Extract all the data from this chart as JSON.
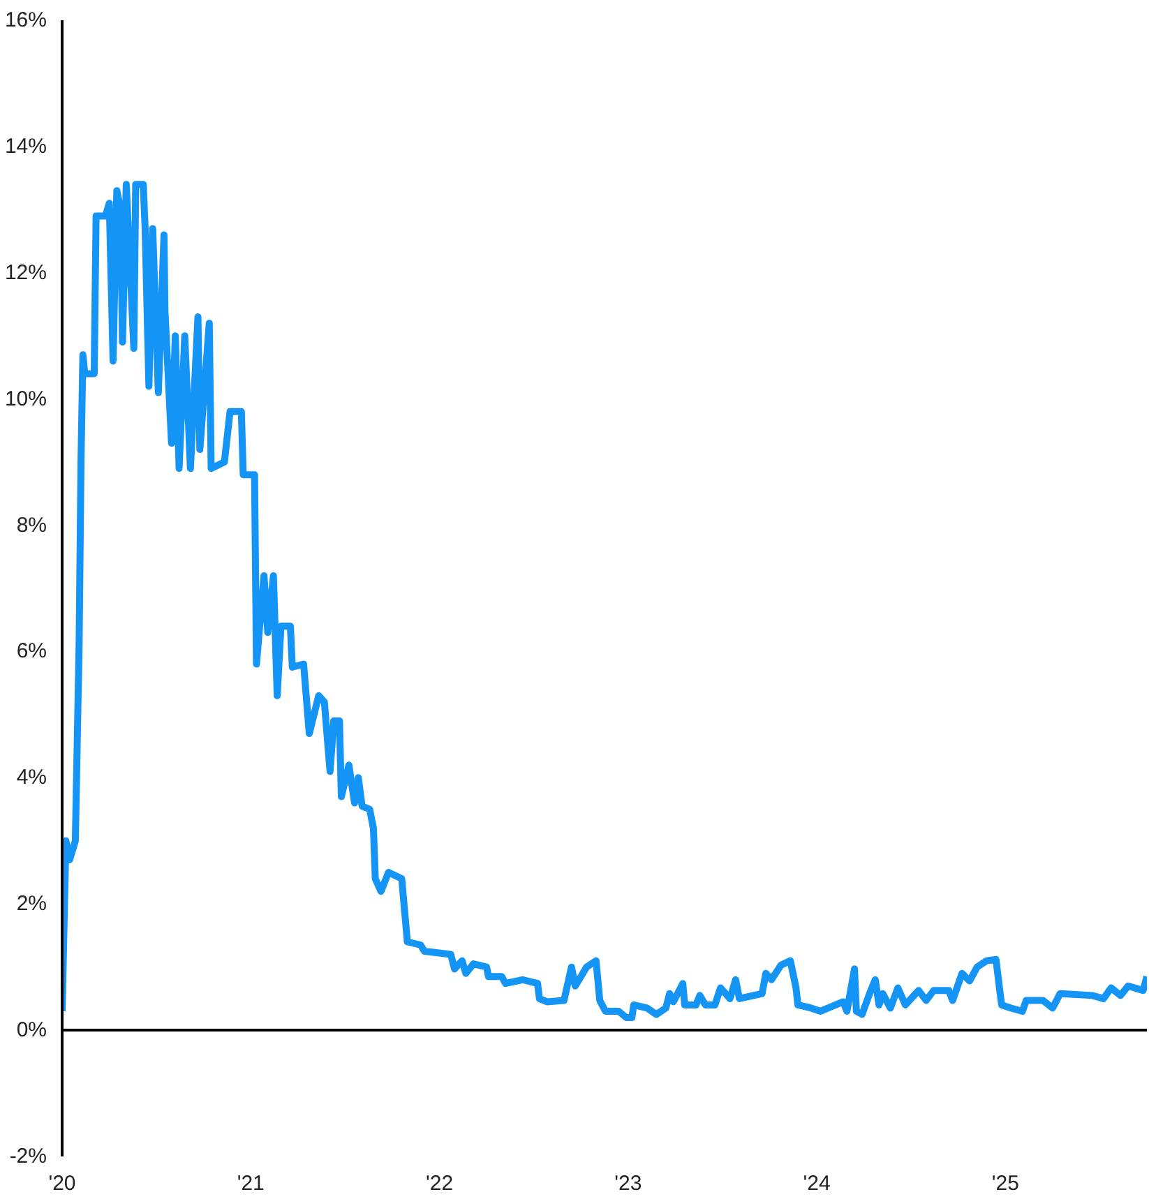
{
  "chart_data": {
    "type": "line",
    "x": [
      2020.0,
      2020.02,
      2020.04,
      2020.07,
      2020.09,
      2020.1,
      2020.11,
      2020.12,
      2020.17,
      2020.18,
      2020.23,
      2020.25,
      2020.27,
      2020.29,
      2020.31,
      2020.32,
      2020.34,
      2020.38,
      2020.39,
      2020.43,
      2020.44,
      2020.46,
      2020.48,
      2020.51,
      2020.54,
      2020.545,
      2020.58,
      2020.6,
      2020.62,
      2020.65,
      2020.68,
      2020.72,
      2020.73,
      2020.78,
      2020.79,
      2020.86,
      2020.89,
      2020.95,
      2020.96,
      2021.02,
      2021.03,
      2021.07,
      2021.09,
      2021.12,
      2021.14,
      2021.16,
      2021.21,
      2021.22,
      2021.28,
      2021.31,
      2021.36,
      2021.39,
      2021.42,
      2021.44,
      2021.47,
      2021.48,
      2021.52,
      2021.55,
      2021.57,
      2021.59,
      2021.63,
      2021.65,
      2021.66,
      2021.69,
      2021.73,
      2021.8,
      2021.83,
      2021.9,
      2021.92,
      2022.06,
      2022.08,
      2022.12,
      2022.14,
      2022.18,
      2022.25,
      2022.26,
      2022.33,
      2022.35,
      2022.44,
      2022.52,
      2022.53,
      2022.57,
      2022.66,
      2022.7,
      2022.72,
      2022.78,
      2022.83,
      2022.85,
      2022.88,
      2022.95,
      2022.99,
      2023.02,
      2023.03,
      2023.1,
      2023.15,
      2023.2,
      2023.22,
      2023.24,
      2023.29,
      2023.3,
      2023.36,
      2023.38,
      2023.41,
      2023.46,
      2023.49,
      2023.54,
      2023.57,
      2023.59,
      2023.71,
      2023.73,
      2023.76,
      2023.81,
      2023.86,
      2023.89,
      2023.9,
      2023.97,
      2024.02,
      2024.14,
      2024.16,
      2024.2,
      2024.21,
      2024.24,
      2024.28,
      2024.31,
      2024.33,
      2024.35,
      2024.39,
      2024.43,
      2024.47,
      2024.54,
      2024.58,
      2024.62,
      2024.7,
      2024.72,
      2024.77,
      2024.81,
      2024.85,
      2024.9,
      2024.95,
      2024.97,
      2024.98,
      2025.03,
      2025.09,
      2025.11,
      2025.2,
      2025.25,
      2025.29,
      2025.46,
      2025.52,
      2025.56,
      2025.61,
      2025.65,
      2025.73,
      2025.75
    ],
    "series": [
      {
        "color": "#1494f5",
        "values": [
          0.3,
          3.0,
          2.7,
          3.0,
          6.1,
          9.0,
          10.7,
          10.4,
          10.4,
          12.9,
          12.9,
          13.1,
          10.6,
          13.3,
          13.0,
          10.9,
          13.4,
          10.8,
          13.4,
          13.4,
          12.7,
          10.2,
          12.7,
          10.1,
          12.6,
          11.4,
          9.3,
          11.0,
          8.9,
          11.0,
          8.9,
          11.3,
          9.2,
          11.2,
          8.9,
          9.0,
          9.8,
          9.8,
          8.8,
          8.8,
          5.8,
          7.2,
          6.3,
          7.2,
          5.3,
          6.4,
          6.4,
          5.75,
          5.8,
          4.7,
          5.3,
          5.2,
          4.1,
          4.9,
          4.9,
          3.7,
          4.2,
          3.6,
          4.0,
          3.55,
          3.5,
          3.2,
          2.4,
          2.2,
          2.5,
          2.4,
          1.4,
          1.35,
          1.25,
          1.2,
          0.97,
          1.1,
          0.9,
          1.05,
          1.0,
          0.85,
          0.85,
          0.74,
          0.8,
          0.74,
          0.5,
          0.45,
          0.47,
          1.0,
          0.7,
          1.0,
          1.1,
          0.47,
          0.3,
          0.3,
          0.2,
          0.2,
          0.4,
          0.35,
          0.25,
          0.35,
          0.58,
          0.45,
          0.74,
          0.4,
          0.4,
          0.55,
          0.4,
          0.4,
          0.67,
          0.5,
          0.8,
          0.5,
          0.58,
          0.9,
          0.8,
          1.03,
          1.1,
          0.67,
          0.4,
          0.35,
          0.3,
          0.45,
          0.3,
          0.97,
          0.3,
          0.25,
          0.58,
          0.8,
          0.4,
          0.58,
          0.35,
          0.67,
          0.4,
          0.63,
          0.47,
          0.63,
          0.63,
          0.47,
          0.9,
          0.78,
          1.0,
          1.1,
          1.12,
          0.63,
          0.4,
          0.35,
          0.3,
          0.47,
          0.47,
          0.35,
          0.58,
          0.55,
          0.5,
          0.67,
          0.55,
          0.7,
          0.63,
          0.85
        ]
      }
    ],
    "xlim": [
      2020,
      2025.75
    ],
    "xticks": [
      {
        "value": 2020,
        "label": "'20"
      },
      {
        "value": 2021,
        "label": "'21"
      },
      {
        "value": 2022,
        "label": "'22"
      },
      {
        "value": 2023,
        "label": "'23"
      },
      {
        "value": 2024,
        "label": "'24"
      },
      {
        "value": 2025,
        "label": "'25"
      }
    ],
    "ylim": [
      -2,
      16
    ],
    "yticks": [
      {
        "value": -2,
        "label": "-2%"
      },
      {
        "value": 0,
        "label": "0%"
      },
      {
        "value": 2,
        "label": "2%"
      },
      {
        "value": 4,
        "label": "4%"
      },
      {
        "value": 6,
        "label": "6%"
      },
      {
        "value": 8,
        "label": "8%"
      },
      {
        "value": 10,
        "label": "10%"
      },
      {
        "value": 12,
        "label": "12%"
      },
      {
        "value": 14,
        "label": "14%"
      },
      {
        "value": 16,
        "label": "16%"
      }
    ],
    "ref_lines": [
      {
        "axis": "y",
        "value": 0,
        "color": "#000000"
      }
    ],
    "grid": false
  }
}
